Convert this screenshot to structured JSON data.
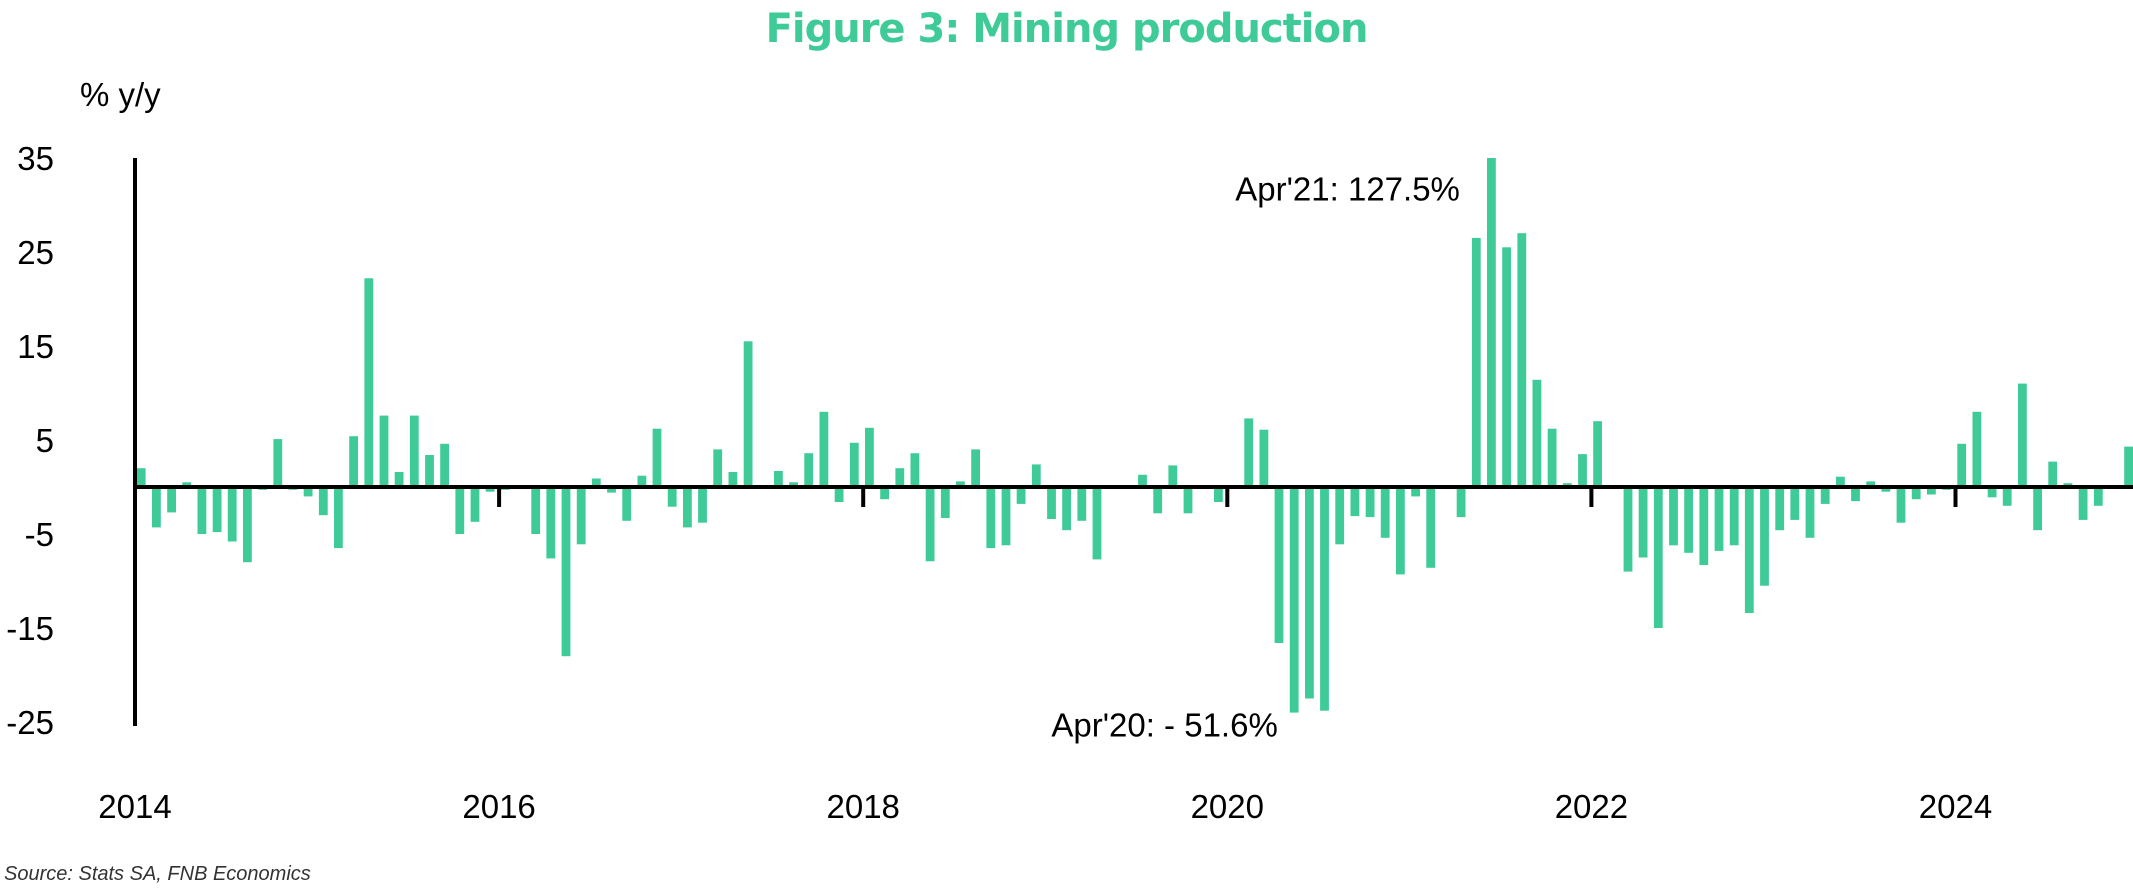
{
  "title": "Figure 3: Mining production",
  "source": "Source: Stats SA, FNB Economics",
  "chart_data": {
    "type": "bar",
    "title": "Figure 3: Mining production",
    "ylabel": "% y/y",
    "xlabel": "",
    "ylim": [
      -25,
      35
    ],
    "y_ticks": [
      "35",
      "25",
      "15",
      "5",
      "-5",
      "-15",
      "-25"
    ],
    "y_tick_values": [
      35,
      25,
      15,
      5,
      -5,
      -15,
      -25
    ],
    "x_ticks": [
      "2014",
      "2016",
      "2018",
      "2020",
      "2022",
      "2024"
    ],
    "x_tick_months": [
      0,
      24,
      48,
      72,
      96,
      120
    ],
    "bar_color": "#3ecb98",
    "grid": false,
    "annotations": [
      {
        "text": "Apr'21: 127.5%",
        "month_index": 88,
        "value": 30.5
      },
      {
        "text": "Apr'20:  -  51.6%",
        "month_index": 76,
        "value": -23.8
      }
    ],
    "values": [
      2.0,
      -4.3,
      -2.7,
      0.5,
      -5.0,
      -4.8,
      -5.8,
      -8.0,
      -0.3,
      5.1,
      -0.3,
      -1.0,
      -3.0,
      -6.5,
      5.4,
      22.2,
      7.6,
      1.6,
      7.6,
      3.4,
      4.6,
      -5.0,
      -3.7,
      -0.5,
      -0.3,
      -0.2,
      -5.0,
      -7.6,
      -18.0,
      -6.1,
      0.9,
      -0.6,
      -3.6,
      1.2,
      6.2,
      -2.1,
      -4.3,
      -3.8,
      4.0,
      1.6,
      15.5,
      -0.1,
      1.7,
      0.5,
      3.6,
      8.0,
      -1.6,
      4.7,
      6.3,
      -1.3,
      2.0,
      3.6,
      -7.9,
      -3.3,
      0.6,
      4.0,
      -6.5,
      -6.2,
      -1.8,
      2.4,
      -3.4,
      -4.6,
      -3.6,
      -7.7,
      0.2,
      0.1,
      1.3,
      -2.8,
      2.3,
      -2.8,
      0.2,
      -1.6,
      0.2,
      7.3,
      6.1,
      -16.6,
      -24.0,
      -22.5,
      -23.8,
      -6.1,
      -3.1,
      -3.2,
      -5.4,
      -9.3,
      -1.0,
      -8.6,
      0.1,
      -3.2,
      26.5,
      35.0,
      25.5,
      27.0,
      11.4,
      6.2,
      0.4,
      3.5,
      7.0,
      -0.2,
      -9.0,
      -7.5,
      -15.0,
      -6.2,
      -7.0,
      -8.3,
      -6.8,
      -6.2,
      -13.4,
      -10.5,
      -4.6,
      -3.5,
      -5.4,
      -1.8,
      1.1,
      -1.5,
      0.6,
      -0.5,
      -3.8,
      -1.3,
      -0.8,
      -0.3,
      4.6,
      8.0,
      -1.1,
      -2.0,
      11.0,
      -4.6,
      2.7,
      0.4,
      -3.5,
      -2.0,
      -0.1,
      4.3
    ]
  }
}
